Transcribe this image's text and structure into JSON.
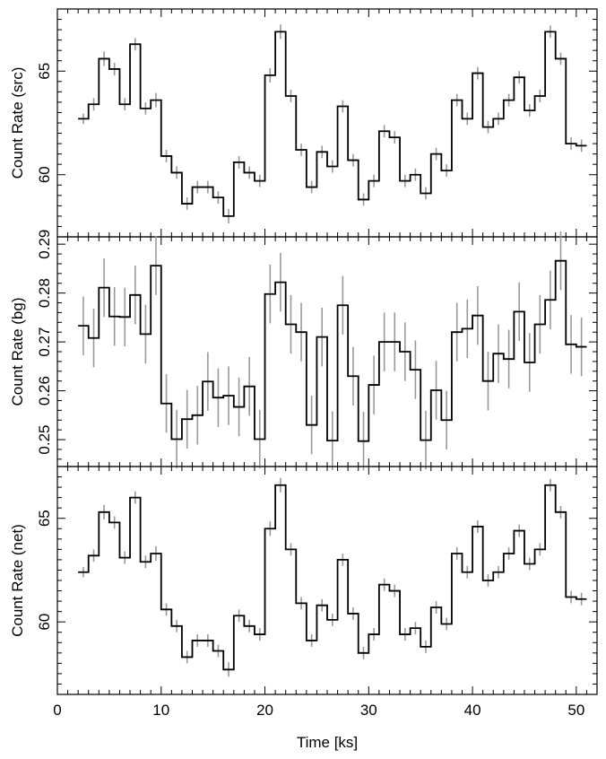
{
  "chart_data": [
    {
      "type": "line",
      "style": "step",
      "xlabel": "",
      "ylabel": "Count Rate (src)",
      "xlim": [
        0,
        52
      ],
      "ylim": [
        57.0,
        68.0
      ],
      "yticks": [
        60,
        65
      ],
      "yminor_step": 0.5,
      "x": [
        2.5,
        3.5,
        4.5,
        5.5,
        6.5,
        7.5,
        8.5,
        9.5,
        10.5,
        11.5,
        12.5,
        13.5,
        14.5,
        15.5,
        16.5,
        17.5,
        18.5,
        19.5,
        20.5,
        21.5,
        22.5,
        23.5,
        24.5,
        25.5,
        26.5,
        27.5,
        28.5,
        29.5,
        30.5,
        31.5,
        32.5,
        33.5,
        34.5,
        35.5,
        36.5,
        37.5,
        38.5,
        39.5,
        40.5,
        41.5,
        42.5,
        43.5,
        44.5,
        45.5,
        46.5,
        47.5,
        48.5,
        49.5,
        50.5
      ],
      "series": [
        {
          "values": [
            62.7,
            63.4,
            65.6,
            65.1,
            63.4,
            66.3,
            63.2,
            63.6,
            60.9,
            60.1,
            58.6,
            59.4,
            59.4,
            58.9,
            58.0,
            60.6,
            60.1,
            59.7,
            64.8,
            66.9,
            63.8,
            61.2,
            59.4,
            61.1,
            60.4,
            63.3,
            60.7,
            58.8,
            59.7,
            62.1,
            61.8,
            59.7,
            60.0,
            59.1,
            61.0,
            60.2,
            63.6,
            62.7,
            64.9,
            62.3,
            62.7,
            63.6,
            64.7,
            63.1,
            63.8,
            66.9,
            65.6,
            61.5,
            61.4
          ],
          "errors": [
            0.25,
            0.3,
            0.35,
            0.3,
            0.3,
            0.3,
            0.3,
            0.35,
            0.3,
            0.3,
            0.3,
            0.3,
            0.3,
            0.3,
            0.35,
            0.3,
            0.3,
            0.3,
            0.35,
            0.35,
            0.3,
            0.3,
            0.3,
            0.3,
            0.3,
            0.3,
            0.3,
            0.3,
            0.3,
            0.3,
            0.3,
            0.3,
            0.3,
            0.3,
            0.3,
            0.3,
            0.3,
            0.3,
            0.3,
            0.3,
            0.3,
            0.3,
            0.3,
            0.3,
            0.3,
            0.3,
            0.3,
            0.3,
            0.3
          ]
        }
      ]
    },
    {
      "type": "line",
      "style": "step",
      "xlabel": "",
      "ylabel": "Count Rate (bg)",
      "xlim": [
        0,
        52
      ],
      "ylim": [
        0.2445,
        0.2915
      ],
      "yticks": [
        0.25,
        0.26,
        0.27,
        0.28,
        0.29
      ],
      "yminor_step": 0.002,
      "x": [
        2.5,
        3.5,
        4.5,
        5.5,
        6.5,
        7.5,
        8.5,
        9.5,
        10.5,
        11.5,
        12.5,
        13.5,
        14.5,
        15.5,
        16.5,
        17.5,
        18.5,
        19.5,
        20.5,
        21.5,
        22.5,
        23.5,
        24.5,
        25.5,
        26.5,
        27.5,
        28.5,
        29.5,
        30.5,
        31.5,
        32.5,
        33.5,
        34.5,
        35.5,
        36.5,
        37.5,
        38.5,
        39.5,
        40.5,
        41.5,
        42.5,
        43.5,
        44.5,
        45.5,
        46.5,
        47.5,
        48.5,
        49.5,
        50.5
      ],
      "series": [
        {
          "values": [
            0.2733,
            0.2708,
            0.2811,
            0.2752,
            0.2751,
            0.2796,
            0.2716,
            0.2856,
            0.2574,
            0.2501,
            0.2542,
            0.255,
            0.2619,
            0.2586,
            0.259,
            0.2567,
            0.2609,
            0.2501,
            0.2798,
            0.2822,
            0.2736,
            0.272,
            0.253,
            0.271,
            0.2498,
            0.2775,
            0.263,
            0.2497,
            0.2612,
            0.27,
            0.27,
            0.268,
            0.2643,
            0.2499,
            0.2601,
            0.254,
            0.272,
            0.2727,
            0.2754,
            0.262,
            0.2676,
            0.2665,
            0.2762,
            0.2658,
            0.2736,
            0.2786,
            0.2866,
            0.2695,
            0.269
          ],
          "errors": [
            0.006,
            0.006,
            0.006,
            0.006,
            0.006,
            0.006,
            0.006,
            0.006,
            0.006,
            0.006,
            0.006,
            0.006,
            0.006,
            0.006,
            0.006,
            0.006,
            0.006,
            0.006,
            0.006,
            0.006,
            0.006,
            0.006,
            0.006,
            0.006,
            0.006,
            0.006,
            0.006,
            0.006,
            0.006,
            0.006,
            0.006,
            0.006,
            0.006,
            0.006,
            0.006,
            0.006,
            0.006,
            0.006,
            0.006,
            0.006,
            0.006,
            0.006,
            0.006,
            0.006,
            0.006,
            0.006,
            0.006,
            0.006,
            0.006
          ]
        }
      ]
    },
    {
      "type": "line",
      "style": "step",
      "xlabel": "Time [ks]",
      "ylabel": "Count Rate (net)",
      "xlim": [
        0,
        52
      ],
      "ylim": [
        56.5,
        67.5
      ],
      "xticks": [
        0,
        10,
        20,
        30,
        40,
        50
      ],
      "yticks": [
        60,
        65
      ],
      "xminor_step": 1,
      "yminor_step": 0.5,
      "x": [
        2.5,
        3.5,
        4.5,
        5.5,
        6.5,
        7.5,
        8.5,
        9.5,
        10.5,
        11.5,
        12.5,
        13.5,
        14.5,
        15.5,
        16.5,
        17.5,
        18.5,
        19.5,
        20.5,
        21.5,
        22.5,
        23.5,
        24.5,
        25.5,
        26.5,
        27.5,
        28.5,
        29.5,
        30.5,
        31.5,
        32.5,
        33.5,
        34.5,
        35.5,
        36.5,
        37.5,
        38.5,
        39.5,
        40.5,
        41.5,
        42.5,
        43.5,
        44.5,
        45.5,
        46.5,
        47.5,
        48.5,
        49.5,
        50.5
      ],
      "series": [
        {
          "values": [
            62.4,
            63.2,
            65.3,
            64.8,
            63.1,
            66.0,
            62.9,
            63.3,
            60.6,
            59.8,
            58.3,
            59.1,
            59.1,
            58.6,
            57.7,
            60.3,
            59.8,
            59.4,
            64.5,
            66.6,
            63.5,
            60.9,
            59.1,
            60.8,
            60.1,
            63.0,
            60.4,
            58.5,
            59.4,
            61.8,
            61.5,
            59.4,
            59.7,
            58.8,
            60.7,
            59.9,
            63.3,
            62.4,
            64.6,
            62.0,
            62.4,
            63.3,
            64.4,
            62.8,
            63.5,
            66.6,
            65.3,
            61.2,
            61.1
          ],
          "errors": [
            0.25,
            0.3,
            0.35,
            0.3,
            0.3,
            0.3,
            0.3,
            0.35,
            0.3,
            0.3,
            0.3,
            0.3,
            0.3,
            0.3,
            0.35,
            0.3,
            0.3,
            0.3,
            0.35,
            0.35,
            0.3,
            0.3,
            0.3,
            0.3,
            0.3,
            0.3,
            0.3,
            0.3,
            0.3,
            0.3,
            0.3,
            0.3,
            0.3,
            0.3,
            0.3,
            0.3,
            0.3,
            0.3,
            0.3,
            0.3,
            0.3,
            0.3,
            0.3,
            0.3,
            0.3,
            0.3,
            0.3,
            0.3,
            0.3
          ]
        }
      ]
    }
  ],
  "colors": {
    "step_line": "#000000",
    "error_bar": "#999999",
    "frame": "#000000"
  }
}
